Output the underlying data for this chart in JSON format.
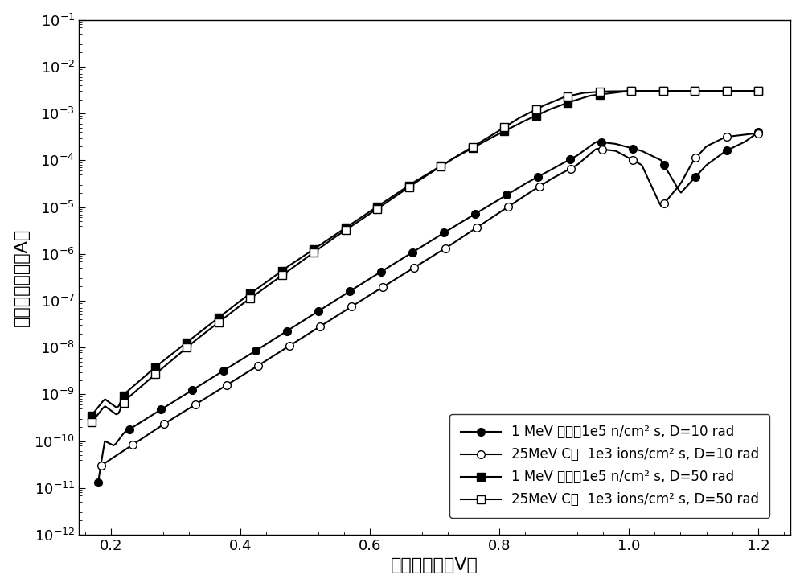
{
  "xlabel": "发射结电压（V）",
  "ylabel": "过剩基极电流（A）",
  "xlim": [
    0.15,
    1.25
  ],
  "ylim_log": [
    -12,
    -1
  ],
  "xticks": [
    0.2,
    0.4,
    0.6,
    0.8,
    1.0,
    1.2
  ],
  "legend_labels": [
    "1 MeV 中子，1e5 n/cm² s, D=10 rad",
    "25MeV C，  1e3 ions/cm² s, D=10 rad",
    "1 MeV 中子，1e5 n/cm² s, D=50 rad",
    "25MeV C，  1e3 ions/cm² s, D=50 rad"
  ],
  "background_color": "#ffffff",
  "xlabel_fontsize": 16,
  "ylabel_fontsize": 16,
  "tick_fontsize": 13,
  "legend_fontsize": 12,
  "marker_size": 7,
  "line_width": 1.5
}
